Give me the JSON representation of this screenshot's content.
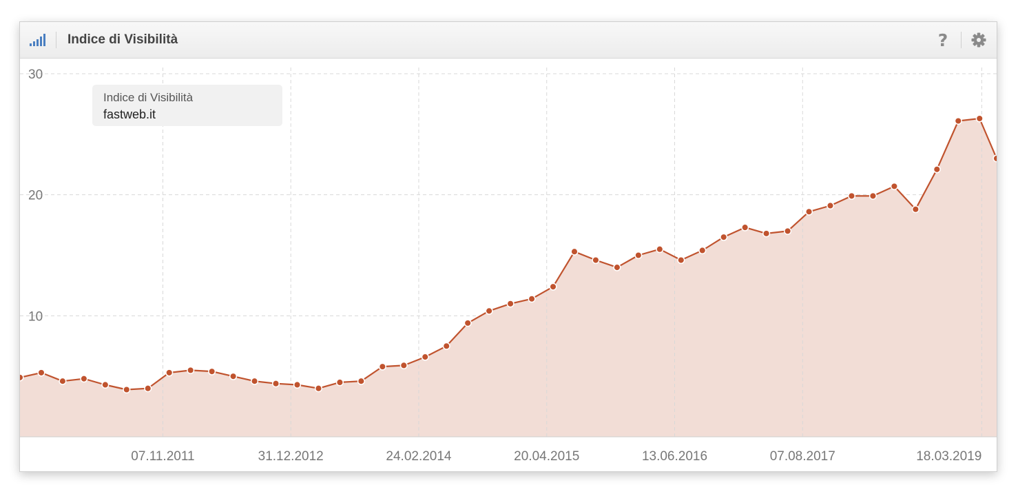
{
  "header": {
    "title": "Indice di Visibilità",
    "help_label": "?",
    "signal_icon": "signal-bars-icon",
    "gear_icon": "gear-icon",
    "accent_color": "#4a7fc1"
  },
  "tooltip": {
    "title": "Indice di Visibilità",
    "domain": "fastweb.it"
  },
  "chart_data": {
    "type": "area",
    "title": "",
    "xlabel": "",
    "ylabel": "",
    "ylim": [
      0,
      30
    ],
    "y_ticks": [
      10,
      20,
      30
    ],
    "grid": true,
    "line_color": "#c0532e",
    "fill_color": "#f2ddd6",
    "x_range": [
      "2010-07-26",
      "2019-05-06"
    ],
    "x_tick_labels": [
      "07.11.2011",
      "31.12.2012",
      "24.02.2014",
      "20.04.2015",
      "13.06.2016",
      "07.08.2017",
      "18.03.2019"
    ],
    "x_tick_dates": [
      "2011-11-07",
      "2012-12-31",
      "2014-02-24",
      "2015-04-20",
      "2016-06-13",
      "2017-08-07",
      "2019-03-18"
    ],
    "series": [
      {
        "x": [
          "2010-07-26",
          "2010-10-04",
          "2010-12-13",
          "2011-02-21",
          "2011-05-02",
          "2011-07-11",
          "2011-09-19",
          "2011-11-28",
          "2012-02-06",
          "2012-04-16",
          "2012-06-25",
          "2012-09-03",
          "2012-11-12",
          "2013-01-21",
          "2013-04-01",
          "2013-06-10",
          "2013-08-19",
          "2013-10-28",
          "2014-01-06",
          "2014-03-17",
          "2014-05-26",
          "2014-08-04",
          "2014-10-13",
          "2014-12-22",
          "2015-03-02",
          "2015-05-11",
          "2015-07-20",
          "2015-09-28",
          "2015-12-07",
          "2016-02-15",
          "2016-04-25",
          "2016-07-04",
          "2016-09-12",
          "2016-11-21",
          "2017-01-30",
          "2017-04-10",
          "2017-06-19",
          "2017-08-28",
          "2017-11-06",
          "2018-01-15",
          "2018-03-26",
          "2018-06-04",
          "2018-08-13",
          "2018-10-22",
          "2018-12-31",
          "2019-03-11",
          "2019-05-06"
        ],
        "values": [
          4.9,
          5.3,
          4.6,
          4.8,
          4.3,
          3.9,
          4.0,
          5.3,
          5.5,
          5.4,
          5.0,
          4.6,
          4.4,
          4.3,
          4.0,
          4.5,
          4.6,
          5.8,
          5.9,
          6.6,
          7.5,
          9.4,
          10.4,
          11.0,
          11.4,
          12.4,
          15.3,
          14.6,
          14.0,
          15.0,
          15.5,
          14.6,
          15.4,
          16.5,
          17.3,
          16.8,
          17.0,
          18.6,
          19.1,
          19.9,
          19.9,
          20.7,
          18.8,
          22.1,
          26.1,
          26.3,
          23.0
        ]
      }
    ]
  }
}
